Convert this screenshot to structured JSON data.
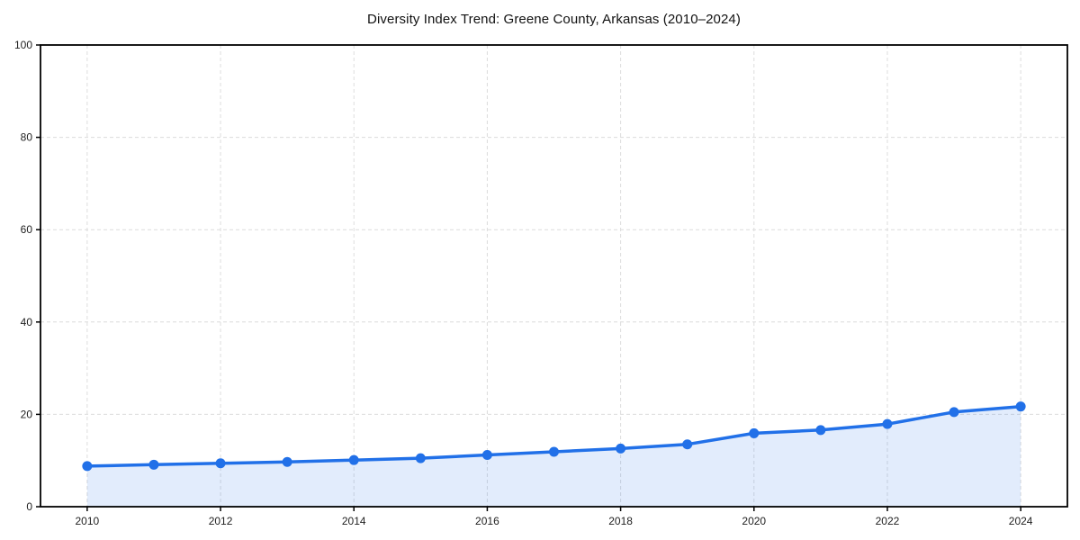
{
  "chart_data": {
    "type": "line",
    "title": "Diversity Index Trend: Greene County, Arkansas (2010–2024)",
    "xlabel": "",
    "ylabel": "",
    "x": [
      2010,
      2011,
      2012,
      2013,
      2014,
      2015,
      2016,
      2017,
      2018,
      2019,
      2020,
      2021,
      2022,
      2023,
      2024
    ],
    "series": [
      {
        "name": "Diversity Index",
        "values": [
          8.8,
          9.1,
          9.4,
          9.7,
          10.1,
          10.5,
          11.2,
          11.9,
          12.6,
          13.5,
          15.9,
          16.6,
          17.9,
          20.5,
          21.7
        ]
      }
    ],
    "xlim": [
      2009.3,
      2024.7
    ],
    "ylim": [
      0,
      100
    ],
    "x_ticks": [
      2010,
      2012,
      2014,
      2016,
      2018,
      2020,
      2022,
      2024
    ],
    "y_ticks": [
      0,
      20,
      40,
      60,
      80,
      100
    ],
    "grid": true,
    "legend": "none",
    "line_color": "#2170e8",
    "fill_opacity": 0.13,
    "grid_color": "#dcdcdc",
    "axis_color": "#000000",
    "marker": "circle"
  }
}
